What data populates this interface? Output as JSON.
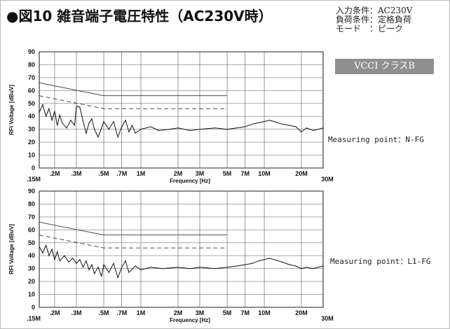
{
  "title": "●図10 雑音端子電圧特性（AC230V時）",
  "conditions": {
    "input": "入力条件：AC230V",
    "load": "負荷条件：定格負荷",
    "mode": "モード　：ピーク"
  },
  "badge": "VCCI クラスB",
  "chart_data": [
    {
      "type": "line",
      "measuring_point": "Measuring point：N-FG",
      "xlabel": "Frequency [Hz]",
      "ylabel": "RFI Voltage [dBuV]",
      "xscale": "log",
      "xlim": [
        0.15,
        30
      ],
      "ylim": [
        0,
        90
      ],
      "xticks": [
        {
          "v": 0.15,
          "label": ".15M"
        },
        {
          "v": 0.2,
          "label": ".2M"
        },
        {
          "v": 0.3,
          "label": ".3M"
        },
        {
          "v": 0.5,
          "label": ".5M"
        },
        {
          "v": 0.7,
          "label": ".7M"
        },
        {
          "v": 1,
          "label": "1M"
        },
        {
          "v": 2,
          "label": "2M"
        },
        {
          "v": 3,
          "label": "3M"
        },
        {
          "v": 5,
          "label": "5M"
        },
        {
          "v": 7,
          "label": "7M"
        },
        {
          "v": 10,
          "label": "10M"
        },
        {
          "v": 20,
          "label": "20M"
        },
        {
          "v": 30,
          "label": "30M"
        }
      ],
      "yticks": [
        0,
        10,
        20,
        30,
        40,
        50,
        60,
        70,
        80,
        90
      ],
      "limit_quasi_peak": [
        [
          0.15,
          66
        ],
        [
          0.5,
          56
        ],
        [
          5,
          56
        ]
      ],
      "limit_average": [
        [
          0.15,
          56
        ],
        [
          0.5,
          46
        ],
        [
          5,
          46
        ]
      ],
      "series": [
        {
          "values": [
            [
              0.15,
              43
            ],
            [
              0.16,
              49
            ],
            [
              0.17,
              40
            ],
            [
              0.18,
              46
            ],
            [
              0.19,
              37
            ],
            [
              0.2,
              44
            ],
            [
              0.21,
              33
            ],
            [
              0.22,
              41
            ],
            [
              0.23,
              35
            ],
            [
              0.25,
              31
            ],
            [
              0.27,
              37
            ],
            [
              0.29,
              33
            ],
            [
              0.3,
              48
            ],
            [
              0.32,
              47
            ],
            [
              0.34,
              36
            ],
            [
              0.36,
              27
            ],
            [
              0.38,
              35
            ],
            [
              0.4,
              38
            ],
            [
              0.42,
              30
            ],
            [
              0.45,
              24
            ],
            [
              0.48,
              31
            ],
            [
              0.5,
              36
            ],
            [
              0.55,
              30
            ],
            [
              0.6,
              36
            ],
            [
              0.65,
              24
            ],
            [
              0.7,
              32
            ],
            [
              0.75,
              37
            ],
            [
              0.8,
              28
            ],
            [
              0.85,
              33
            ],
            [
              0.9,
              27
            ],
            [
              1.0,
              30
            ],
            [
              1.2,
              32
            ],
            [
              1.4,
              29
            ],
            [
              1.7,
              30
            ],
            [
              2,
              31
            ],
            [
              2.5,
              29
            ],
            [
              3,
              30
            ],
            [
              4,
              31
            ],
            [
              5,
              30
            ],
            [
              6,
              31
            ],
            [
              7,
              32
            ],
            [
              8,
              34
            ],
            [
              9,
              35
            ],
            [
              10,
              36
            ],
            [
              11,
              37
            ],
            [
              12,
              36
            ],
            [
              14,
              34
            ],
            [
              16,
              33
            ],
            [
              18,
              32
            ],
            [
              20,
              28
            ],
            [
              22,
              31
            ],
            [
              25,
              29
            ],
            [
              30,
              31
            ]
          ]
        }
      ]
    },
    {
      "type": "line",
      "measuring_point": "Measuring point：L1-FG",
      "xlabel": "Frequency [Hz]",
      "ylabel": "RFI Voltage [dBuV]",
      "xscale": "log",
      "xlim": [
        0.15,
        30
      ],
      "ylim": [
        0,
        90
      ],
      "xticks": [
        {
          "v": 0.15,
          "label": ".15M"
        },
        {
          "v": 0.2,
          "label": ".2M"
        },
        {
          "v": 0.3,
          "label": ".3M"
        },
        {
          "v": 0.5,
          "label": ".5M"
        },
        {
          "v": 0.7,
          "label": ".7M"
        },
        {
          "v": 1,
          "label": "1M"
        },
        {
          "v": 2,
          "label": "2M"
        },
        {
          "v": 3,
          "label": "3M"
        },
        {
          "v": 5,
          "label": "5M"
        },
        {
          "v": 7,
          "label": "7M"
        },
        {
          "v": 10,
          "label": "10M"
        },
        {
          "v": 20,
          "label": "20M"
        },
        {
          "v": 30,
          "label": "30M"
        }
      ],
      "yticks": [
        0,
        10,
        20,
        30,
        40,
        50,
        60,
        70,
        80,
        90
      ],
      "limit_quasi_peak": [
        [
          0.15,
          66
        ],
        [
          0.5,
          56
        ],
        [
          5,
          56
        ]
      ],
      "limit_average": [
        [
          0.15,
          56
        ],
        [
          0.5,
          46
        ],
        [
          5,
          46
        ]
      ],
      "series": [
        {
          "values": [
            [
              0.15,
              47
            ],
            [
              0.16,
              42
            ],
            [
              0.17,
              48
            ],
            [
              0.18,
              40
            ],
            [
              0.19,
              45
            ],
            [
              0.2,
              37
            ],
            [
              0.21,
              43
            ],
            [
              0.22,
              36
            ],
            [
              0.24,
              40
            ],
            [
              0.26,
              35
            ],
            [
              0.28,
              38
            ],
            [
              0.3,
              34
            ],
            [
              0.32,
              37
            ],
            [
              0.34,
              31
            ],
            [
              0.36,
              36
            ],
            [
              0.38,
              29
            ],
            [
              0.4,
              33
            ],
            [
              0.42,
              26
            ],
            [
              0.45,
              31
            ],
            [
              0.48,
              24
            ],
            [
              0.5,
              33
            ],
            [
              0.55,
              27
            ],
            [
              0.6,
              34
            ],
            [
              0.65,
              23
            ],
            [
              0.7,
              31
            ],
            [
              0.75,
              36
            ],
            [
              0.8,
              27
            ],
            [
              0.9,
              32
            ],
            [
              1.0,
              29
            ],
            [
              1.2,
              31
            ],
            [
              1.5,
              30
            ],
            [
              2,
              31
            ],
            [
              2.5,
              30
            ],
            [
              3,
              31
            ],
            [
              4,
              30
            ],
            [
              5,
              31
            ],
            [
              6,
              32
            ],
            [
              7,
              33
            ],
            [
              8,
              34
            ],
            [
              9,
              36
            ],
            [
              10,
              37
            ],
            [
              11,
              38
            ],
            [
              12,
              37
            ],
            [
              14,
              35
            ],
            [
              16,
              33
            ],
            [
              18,
              32
            ],
            [
              20,
              30
            ],
            [
              22,
              31
            ],
            [
              25,
              30
            ],
            [
              30,
              32
            ]
          ]
        }
      ]
    }
  ]
}
